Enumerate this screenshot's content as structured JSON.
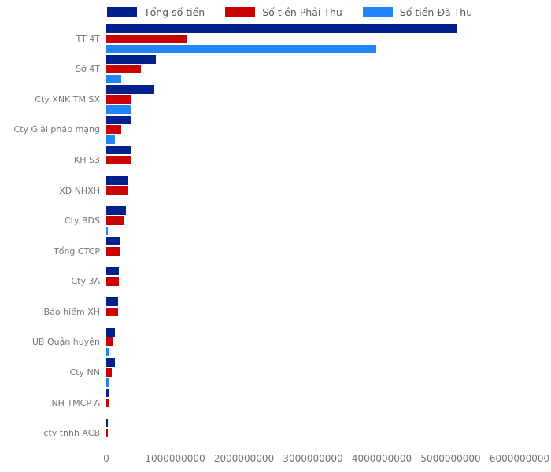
{
  "colors": {
    "background": "#ffffff",
    "total_bar": "#02218c",
    "receivable_bar": "#c80101",
    "received_bar": "#2184f7",
    "category_label_text": "#767676",
    "tick_label_text": "#737373",
    "legend_text": "#595959"
  },
  "legend": {
    "position": "top",
    "items": [
      {
        "label": "Tổng số tiền",
        "color": "#02218c"
      },
      {
        "label": "Số tiền Phải Thu",
        "color": "#c80101"
      },
      {
        "label": "Số tiền Đã Thu",
        "color": "#2184f7"
      }
    ]
  },
  "chart_data": {
    "type": "bar",
    "orientation": "horizontal",
    "title": "",
    "xlabel": "",
    "ylabel": "",
    "grid": false,
    "legend_position": "top",
    "xlim": [
      0,
      6000000000
    ],
    "x_ticks": [
      "0",
      "1000000000",
      "2000000000",
      "3000000000",
      "4000000000",
      "5000000000",
      "6000000000"
    ],
    "categories": [
      "TT 4T",
      "Sở 4T",
      "Cty XNK TM SX",
      "Cty Giải pháp mạng",
      "KH S3",
      "XD NHXH",
      "Cty BDS",
      "Tổng CTCP",
      "Cty 3A",
      "Bảo hiểm XH",
      "UB Quận huyện",
      "Cty NN",
      "NH TMCP A",
      "cty tnhh ACB"
    ],
    "series": [
      {
        "name": "Tổng số tiền",
        "color": "#02218c",
        "values": [
          5100000000,
          720000000,
          700000000,
          350000000,
          350000000,
          310000000,
          280000000,
          200000000,
          180000000,
          170000000,
          130000000,
          120000000,
          40000000,
          10000000
        ]
      },
      {
        "name": "Số tiền Phải Thu",
        "color": "#c80101",
        "values": [
          1180000000,
          500000000,
          350000000,
          220000000,
          350000000,
          310000000,
          260000000,
          200000000,
          180000000,
          170000000,
          90000000,
          80000000,
          40000000,
          10000000
        ]
      },
      {
        "name": "Số tiền Đã Thu",
        "color": "#2184f7",
        "values": [
          3920000000,
          220000000,
          350000000,
          130000000,
          0,
          0,
          20000000,
          0,
          0,
          0,
          40000000,
          40000000,
          0,
          0
        ]
      }
    ]
  }
}
